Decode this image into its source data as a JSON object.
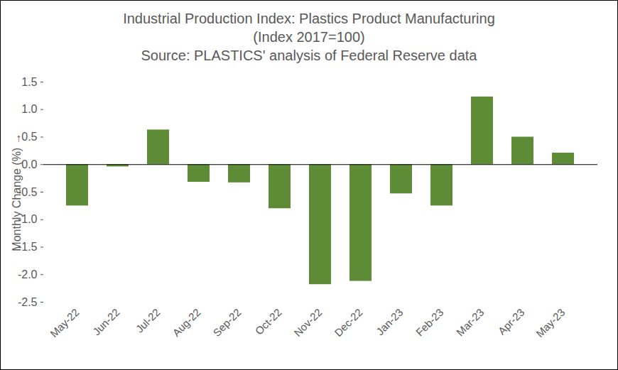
{
  "chart_data": {
    "type": "bar",
    "title": "Industrial Production Index: Plastics Product Manufacturing",
    "subtitle": "(Index 2017=100)",
    "source": "Source: PLASTICS' analysis of Federal Reserve data",
    "y_label": "Monthly Change (%)",
    "categories": [
      "May-22",
      "Jun-22",
      "Jul-22",
      "Aug-22",
      "Sep-22",
      "Oct-22",
      "Nov-22",
      "Dec-22",
      "Jan-23",
      "Feb-23",
      "Mar-23",
      "Apr-23",
      "May-23"
    ],
    "values": [
      -0.75,
      -0.04,
      0.63,
      -0.32,
      -0.33,
      -0.8,
      -2.18,
      -2.12,
      -0.53,
      -0.75,
      1.23,
      0.5,
      0.21
    ],
    "color": "#5e8b35",
    "ylim": [
      -2.5,
      1.5
    ],
    "yticks": [
      {
        "value": -2.5,
        "label": "-2.5"
      },
      {
        "value": -2,
        "label": "-2.0"
      },
      {
        "value": -1.5,
        "label": "-1.5"
      },
      {
        "value": -1,
        "label": "-1.0"
      },
      {
        "value": -0.5,
        "label": "-0.5"
      },
      {
        "value": 0,
        "label": "0.0"
      },
      0.5,
      {
        "value": 1,
        "label": "1.0"
      },
      1.5
    ],
    "grid": false
  }
}
